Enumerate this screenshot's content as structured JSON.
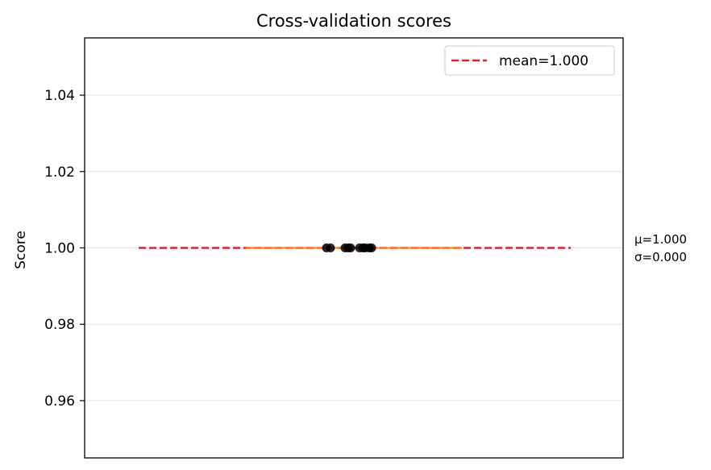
{
  "chart_data": {
    "type": "scatter",
    "title": "Cross-validation scores",
    "xlabel": "",
    "ylabel": "Score",
    "ylim": [
      0.945,
      1.055
    ],
    "y_ticks": [
      0.96,
      0.98,
      1.0,
      1.02,
      1.04
    ],
    "y_tick_labels": [
      "0.96",
      "0.98",
      "1.00",
      "1.02",
      "1.04"
    ],
    "grid": "horizontal",
    "legend_position": "top-right",
    "legend": [
      {
        "label": "mean=1.000",
        "style": "dashed",
        "color": "#d62728"
      }
    ],
    "scores": [
      1.0,
      1.0,
      1.0,
      1.0,
      1.0,
      1.0,
      1.0,
      1.0,
      1.0,
      1.0
    ],
    "mean": 1.0,
    "std": 0.0,
    "annotation_lines": [
      "μ=1.000",
      "σ=0.000"
    ],
    "colors": {
      "mean_line": "#d62728",
      "median_line": "#ff7f0e",
      "points": "#000000",
      "grid": "#e6e6e6"
    }
  }
}
